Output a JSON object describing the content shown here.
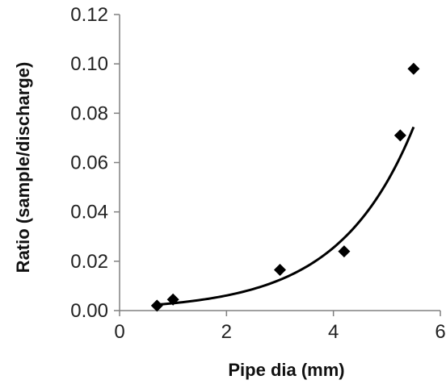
{
  "chart_data": {
    "type": "scatter",
    "title": "",
    "xlabel": "Pipe dia (mm)",
    "ylabel": "Ratio (sample/discharge)",
    "xlim": [
      0,
      6
    ],
    "ylim": [
      0,
      0.12
    ],
    "xticks": [
      0,
      2,
      4,
      6
    ],
    "xtick_labels": [
      "0",
      "2",
      "4",
      "6"
    ],
    "yticks": [
      0,
      0.02,
      0.04,
      0.06,
      0.08,
      0.1,
      0.12
    ],
    "ytick_labels": [
      "0.00",
      "0.02",
      "0.04",
      "0.06",
      "0.08",
      "0.10",
      "0.12"
    ],
    "grid": false,
    "legend": "none",
    "series": [
      {
        "marker": "diamond",
        "color": "#000000",
        "x": [
          0.7,
          1.0,
          3.0,
          4.2,
          5.25,
          5.5
        ],
        "y": [
          0.002,
          0.0045,
          0.0165,
          0.024,
          0.071,
          0.098
        ]
      }
    ],
    "trendline": {
      "type": "exponential",
      "color": "#000000",
      "x_range": [
        0.7,
        5.5
      ],
      "x": [
        0.7,
        1.5,
        2.5,
        3.5,
        4.5,
        5.0,
        5.5
      ],
      "y": [
        0.0025,
        0.0045,
        0.0085,
        0.016,
        0.034,
        0.052,
        0.084
      ]
    }
  }
}
